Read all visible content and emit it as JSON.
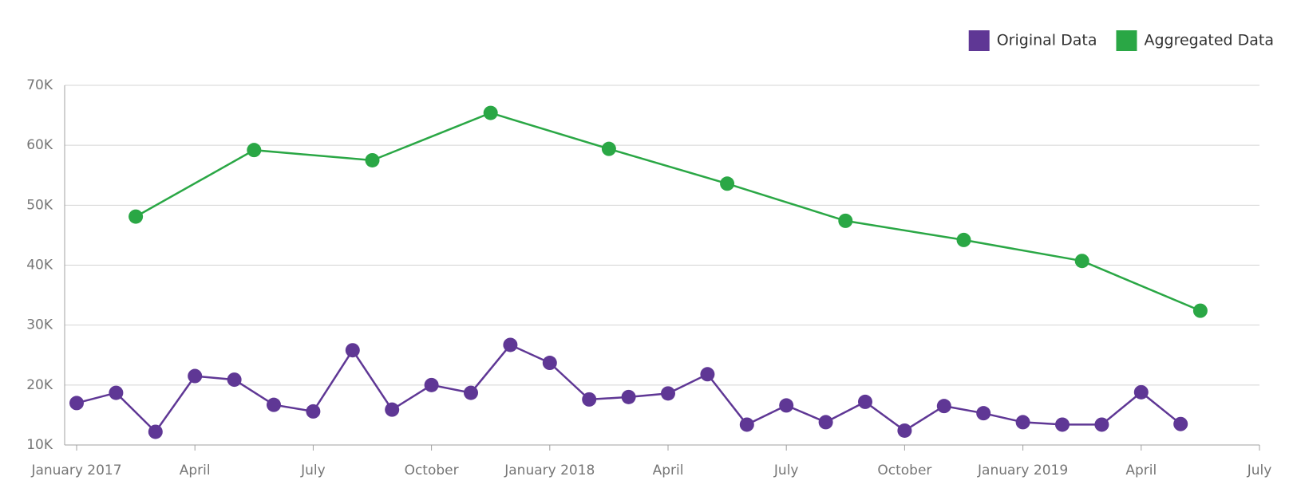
{
  "chart_data": {
    "type": "line",
    "x": [
      "2017-01",
      "2017-02",
      "2017-03",
      "2017-04",
      "2017-05",
      "2017-06",
      "2017-07",
      "2017-08",
      "2017-09",
      "2017-10",
      "2017-11",
      "2017-12",
      "2018-01",
      "2018-02",
      "2018-03",
      "2018-04",
      "2018-05",
      "2018-06",
      "2018-07",
      "2018-08",
      "2018-09",
      "2018-10",
      "2018-11",
      "2018-12",
      "2019-01",
      "2019-02",
      "2019-03",
      "2019-04",
      "2019-05"
    ],
    "series": [
      {
        "name": "Original Data",
        "color": "#5f3795",
        "values": [
          17000,
          18700,
          12200,
          21500,
          20900,
          16700,
          15600,
          25800,
          15900,
          20000,
          18700,
          26700,
          23700,
          17600,
          18000,
          18600,
          21800,
          13400,
          16600,
          13800,
          17200,
          12400,
          16500,
          15300,
          13800,
          13400,
          13400,
          18800,
          13500
        ]
      },
      {
        "name": "Aggregated Data",
        "color": "#2aa745",
        "interval_months": 3,
        "x": [
          "2017-01",
          "2017-04",
          "2017-07",
          "2017-10",
          "2018-01",
          "2018-04",
          "2018-07",
          "2018-10",
          "2019-01",
          "2019-04"
        ],
        "values": [
          48100,
          59200,
          57500,
          65400,
          59400,
          53600,
          47400,
          44200,
          40700,
          32400
        ]
      }
    ],
    "xlim": [
      "2017-01",
      "2019-07"
    ],
    "xticks": [
      {
        "value": "2017-01",
        "label": "January 2017"
      },
      {
        "value": "2017-04",
        "label": "April"
      },
      {
        "value": "2017-07",
        "label": "July"
      },
      {
        "value": "2017-10",
        "label": "October"
      },
      {
        "value": "2018-01",
        "label": "January 2018"
      },
      {
        "value": "2018-04",
        "label": "April"
      },
      {
        "value": "2018-07",
        "label": "July"
      },
      {
        "value": "2018-10",
        "label": "October"
      },
      {
        "value": "2019-01",
        "label": "January 2019"
      },
      {
        "value": "2019-04",
        "label": "April"
      },
      {
        "value": "2019-07",
        "label": "July"
      }
    ],
    "ylim": [
      10000,
      70000
    ],
    "yticks": [
      {
        "value": 10000,
        "label": "10K"
      },
      {
        "value": 20000,
        "label": "20K"
      },
      {
        "value": 30000,
        "label": "30K"
      },
      {
        "value": 40000,
        "label": "40K"
      },
      {
        "value": 50000,
        "label": "50K"
      },
      {
        "value": 60000,
        "label": "60K"
      },
      {
        "value": 70000,
        "label": "70K"
      }
    ],
    "grid": true,
    "legend": "top-right"
  }
}
